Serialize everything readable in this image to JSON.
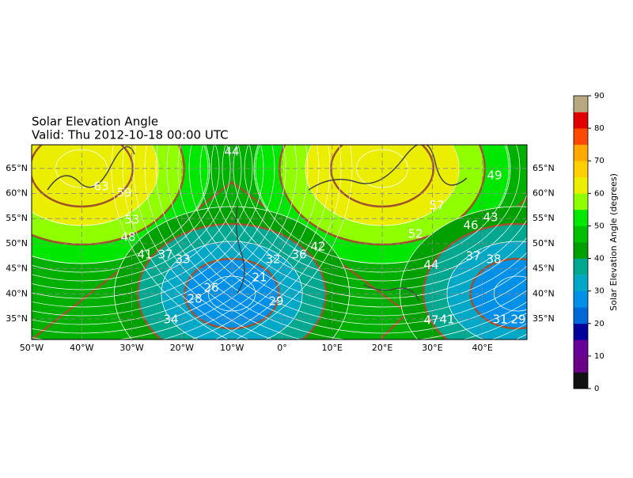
{
  "chart_data": {
    "type": "contour-map",
    "title": "Solar Elevation Angle",
    "subtitle": "Valid: Thu 2012-10-18 00:00 UTC",
    "xlim": [
      -50,
      48.9
    ],
    "ylim": [
      30.9,
      69.7
    ],
    "xticks": [
      {
        "value": -50,
        "label": "50°W"
      },
      {
        "value": -40,
        "label": "40°W"
      },
      {
        "value": -30,
        "label": "30°W"
      },
      {
        "value": -20,
        "label": "20°W"
      },
      {
        "value": -10,
        "label": "10°W"
      },
      {
        "value": 0,
        "label": "0°"
      },
      {
        "value": 10,
        "label": "10°E"
      },
      {
        "value": 20,
        "label": "20°E"
      },
      {
        "value": 30,
        "label": "30°E"
      },
      {
        "value": 40,
        "label": "40°E"
      }
    ],
    "yticks": [
      {
        "value": 35,
        "label": "35°N"
      },
      {
        "value": 40,
        "label": "40°N"
      },
      {
        "value": 45,
        "label": "45°N"
      },
      {
        "value": 50,
        "label": "50°N"
      },
      {
        "value": 55,
        "label": "55°N"
      },
      {
        "value": 60,
        "label": "60°N"
      },
      {
        "value": 65,
        "label": "65°N"
      }
    ],
    "grid": true,
    "contour_labels": [
      44,
      26,
      21,
      28,
      29,
      33,
      37,
      41,
      32,
      34,
      36,
      42,
      48,
      53,
      59,
      63,
      49,
      43,
      46,
      41,
      37,
      38,
      31,
      29,
      52,
      57,
      44,
      47
    ],
    "colorbar": {
      "label": "Solar Elevation Angle (degrees)",
      "lim": [
        0,
        90
      ],
      "ticks": [
        0,
        10,
        20,
        30,
        40,
        50,
        60,
        70,
        80,
        90
      ],
      "colors": [
        "#111111",
        "#6a0088",
        "#660099",
        "#00009a",
        "#0068d8",
        "#0090e8",
        "#00a8c8",
        "#00a890",
        "#00a000",
        "#00c000",
        "#00e800",
        "#90ff00",
        "#ecee00",
        "#ffd000",
        "#ffa800",
        "#ff4800",
        "#e00000",
        "#b8a880"
      ]
    }
  }
}
